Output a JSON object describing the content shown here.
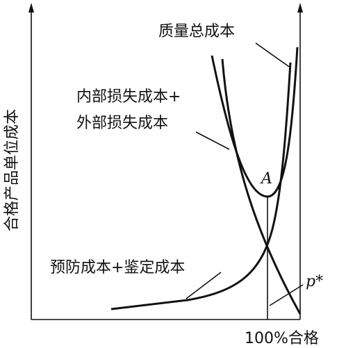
{
  "diagram": {
    "y_axis_label": "合格产品单位成本",
    "x_axis_label": "100%合格",
    "curves": {
      "total": "质量总成本",
      "failure_line1": "内部损失成本+",
      "failure_line2": "外部损失成本",
      "prevention": "预防成本+鉴定成本"
    },
    "point": "A",
    "optimum": "p*"
  }
}
